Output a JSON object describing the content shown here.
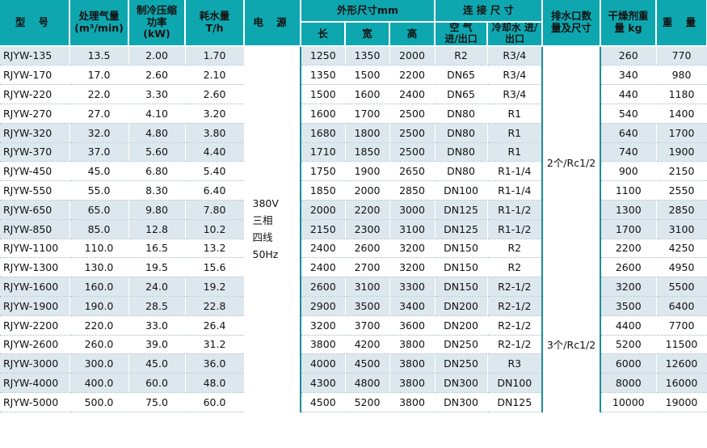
{
  "headers": {
    "model": "型 号",
    "air_volume": "处理气量",
    "air_volume_unit": "(m³/min)",
    "cooling": "制冷压缩功率",
    "cooling_unit": "(kW)",
    "water": "耗水量",
    "water_unit": "T/h",
    "power": "电 源",
    "dimensions": "外形尺寸mm",
    "length": "长",
    "width": "宽",
    "height": "高",
    "connection": "连 接 尺 寸",
    "air_conn": "空 气 进/出口",
    "cool_conn": "冷却水 进/出口",
    "drain": "排水口数量及尺寸",
    "desiccant": "干燥剂重量 kg",
    "weight": "重 量"
  },
  "power_supply": [
    "380V",
    "三相",
    "四线",
    "50Hz"
  ],
  "drain_groups": [
    "2个/Rc1/2",
    "3个/Rc1/2"
  ],
  "rows": [
    {
      "model": "RJYW-135",
      "air": "13.5",
      "kw": "2.00",
      "water": "1.70",
      "l": "1250",
      "w": "1350",
      "h": "2000",
      "air_io": "R2",
      "cool_io": "R3/4",
      "des": "260",
      "wt": "770"
    },
    {
      "model": "RJYW-170",
      "air": "17.0",
      "kw": "2.60",
      "water": "2.10",
      "l": "1350",
      "w": "1500",
      "h": "2200",
      "air_io": "DN65",
      "cool_io": "R3/4",
      "des": "340",
      "wt": "980"
    },
    {
      "model": "RJYW-220",
      "air": "22.0",
      "kw": "3.30",
      "water": "2.60",
      "l": "1500",
      "w": "1600",
      "h": "2400",
      "air_io": "DN65",
      "cool_io": "R3/4",
      "des": "440",
      "wt": "1180"
    },
    {
      "model": "RJYW-270",
      "air": "27.0",
      "kw": "4.10",
      "water": "3.20",
      "l": "1600",
      "w": "1700",
      "h": "2500",
      "air_io": "DN80",
      "cool_io": "R1",
      "des": "540",
      "wt": "1400"
    },
    {
      "model": "RJYW-320",
      "air": "32.0",
      "kw": "4.80",
      "water": "3.80",
      "l": "1680",
      "w": "1800",
      "h": "2500",
      "air_io": "DN80",
      "cool_io": "R1",
      "des": "640",
      "wt": "1700"
    },
    {
      "model": "RJYW-370",
      "air": "37.0",
      "kw": "5.60",
      "water": "4.40",
      "l": "1710",
      "w": "1850",
      "h": "2500",
      "air_io": "DN80",
      "cool_io": "R1",
      "des": "740",
      "wt": "1900"
    },
    {
      "model": "RJYW-450",
      "air": "45.0",
      "kw": "6.80",
      "water": "5.40",
      "l": "1750",
      "w": "1900",
      "h": "2650",
      "air_io": "DN80",
      "cool_io": "R1-1/4",
      "des": "900",
      "wt": "2150"
    },
    {
      "model": "RJYW-550",
      "air": "55.0",
      "kw": "8.30",
      "water": "6.40",
      "l": "1850",
      "w": "2000",
      "h": "2850",
      "air_io": "DN100",
      "cool_io": "R1-1/4",
      "des": "1100",
      "wt": "2550"
    },
    {
      "model": "RJYW-650",
      "air": "65.0",
      "kw": "9.80",
      "water": "7.80",
      "l": "2000",
      "w": "2200",
      "h": "3000",
      "air_io": "DN125",
      "cool_io": "R1-1/2",
      "des": "1300",
      "wt": "2850"
    },
    {
      "model": "RJYW-850",
      "air": "85.0",
      "kw": "12.8",
      "water": "10.2",
      "l": "2150",
      "w": "2300",
      "h": "3100",
      "air_io": "DN125",
      "cool_io": "R1-1/2",
      "des": "1700",
      "wt": "3100"
    },
    {
      "model": "RJYW-1100",
      "air": "110.0",
      "kw": "16.5",
      "water": "13.2",
      "l": "2400",
      "w": "2600",
      "h": "3200",
      "air_io": "DN150",
      "cool_io": "R2",
      "des": "2200",
      "wt": "4250"
    },
    {
      "model": "RJYW-1300",
      "air": "130.0",
      "kw": "19.5",
      "water": "15.6",
      "l": "2400",
      "w": "2700",
      "h": "3200",
      "air_io": "DN150",
      "cool_io": "R2",
      "des": "2600",
      "wt": "4950"
    },
    {
      "model": "RJYW-1600",
      "air": "160.0",
      "kw": "24.0",
      "water": "19.2",
      "l": "2600",
      "w": "3100",
      "h": "3300",
      "air_io": "DN150",
      "cool_io": "R2-1/2",
      "des": "3200",
      "wt": "5500"
    },
    {
      "model": "RJYW-1900",
      "air": "190.0",
      "kw": "28.5",
      "water": "22.8",
      "l": "2900",
      "w": "3500",
      "h": "3400",
      "air_io": "DN200",
      "cool_io": "R2-1/2",
      "des": "3500",
      "wt": "6400"
    },
    {
      "model": "RJYW-2200",
      "air": "220.0",
      "kw": "33.0",
      "water": "26.4",
      "l": "3200",
      "w": "3700",
      "h": "3600",
      "air_io": "DN200",
      "cool_io": "R2-1/2",
      "des": "4400",
      "wt": "7700"
    },
    {
      "model": "RJYW-2600",
      "air": "260.0",
      "kw": "39.0",
      "water": "31.2",
      "l": "3800",
      "w": "4200",
      "h": "3800",
      "air_io": "DN250",
      "cool_io": "R2-1/2",
      "des": "5200",
      "wt": "11500"
    },
    {
      "model": "RJYW-3000",
      "air": "300.0",
      "kw": "45.0",
      "water": "36.0",
      "l": "4000",
      "w": "4500",
      "h": "3800",
      "air_io": "DN250",
      "cool_io": "R3",
      "des": "6000",
      "wt": "12600"
    },
    {
      "model": "RJYW-4000",
      "air": "400.0",
      "kw": "60.0",
      "water": "48.0",
      "l": "4300",
      "w": "4800",
      "h": "3800",
      "air_io": "DN300",
      "cool_io": "DN100",
      "des": "8000",
      "wt": "16000"
    },
    {
      "model": "RJYW-5000",
      "air": "500.0",
      "kw": "75.0",
      "water": "60.0",
      "l": "4500",
      "w": "5200",
      "h": "3800",
      "air_io": "DN300",
      "cool_io": "DN125",
      "des": "10000",
      "wt": "19000"
    }
  ],
  "shading": [
    "shade",
    "plain",
    "plain",
    "plain",
    "shade",
    "shade",
    "plain",
    "plain",
    "shade",
    "shade",
    "plain",
    "plain",
    "shade",
    "shade",
    "plain",
    "plain",
    "shade",
    "shade",
    "plain"
  ],
  "colors": {
    "header_bg": "#0ea7b0",
    "row_shade": "#dde8ee",
    "separator": "#1a8f9a"
  }
}
